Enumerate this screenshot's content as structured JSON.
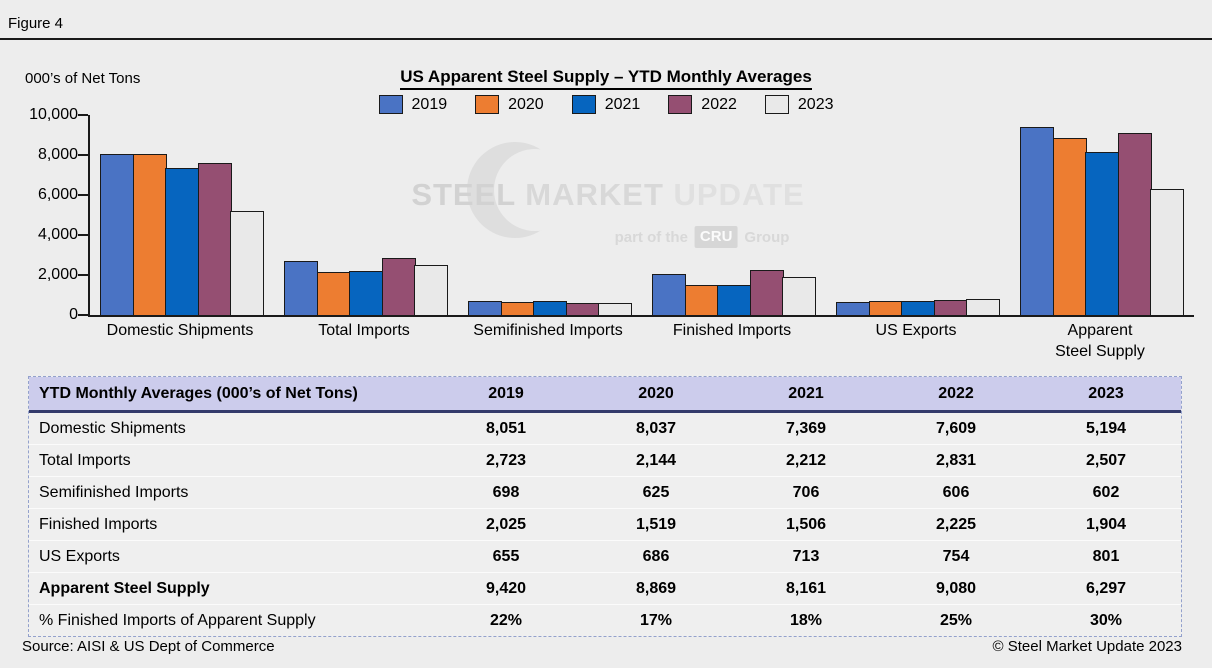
{
  "figure_label": "Figure 4",
  "chart": {
    "ylabel": "000’s of Net Tons",
    "title": "US Apparent Steel Supply – YTD Monthly Averages",
    "watermark": {
      "words": [
        "STEEL",
        "MARKET",
        "UPDATE"
      ],
      "sub_prefix": "part of the",
      "sub_box": "CRU",
      "sub_suffix": "Group"
    }
  },
  "chart_data": {
    "type": "bar",
    "title": "US Apparent Steel Supply – YTD Monthly Averages",
    "ylabel": "000’s of Net Tons",
    "xlabel": "",
    "ylim": [
      0,
      10000
    ],
    "ytick_step": 2000,
    "ytick_labels": [
      "0",
      "2,000",
      "4,000",
      "6,000",
      "8,000",
      "10,000"
    ],
    "grid": false,
    "legend_position": "top",
    "categories": [
      "Domestic Shipments",
      "Total Imports",
      "Semifinished Imports",
      "Finished Imports",
      "US Exports",
      "Apparent\nSteel Supply"
    ],
    "series": [
      {
        "name": "2019",
        "color": "#4A73C4",
        "values": [
          8051,
          2723,
          698,
          2025,
          655,
          9420
        ]
      },
      {
        "name": "2020",
        "color": "#ED7D31",
        "values": [
          8037,
          2144,
          625,
          1519,
          686,
          8869
        ]
      },
      {
        "name": "2021",
        "color": "#0665BF",
        "values": [
          7369,
          2212,
          706,
          1506,
          713,
          8161
        ]
      },
      {
        "name": "2022",
        "color": "#954F72",
        "values": [
          7609,
          2831,
          606,
          2225,
          754,
          9080
        ]
      },
      {
        "name": "2023",
        "color": "#E9E9E9",
        "values": [
          5194,
          2507,
          602,
          1904,
          801,
          6297
        ]
      }
    ]
  },
  "table": {
    "header": {
      "label": "YTD Monthly Averages (000’s of Net Tons)",
      "years": [
        "2019",
        "2020",
        "2021",
        "2022",
        "2023"
      ]
    },
    "rows": [
      {
        "label": "Domestic Shipments",
        "bold_label": false,
        "values": [
          "8,051",
          "8,037",
          "7,369",
          "7,609",
          "5,194"
        ]
      },
      {
        "label": "Total Imports",
        "bold_label": false,
        "values": [
          "2,723",
          "2,144",
          "2,212",
          "2,831",
          "2,507"
        ]
      },
      {
        "label": "Semifinished Imports",
        "bold_label": false,
        "values": [
          "698",
          "625",
          "706",
          "606",
          "602"
        ]
      },
      {
        "label": "Finished Imports",
        "bold_label": false,
        "values": [
          "2,025",
          "1,519",
          "1,506",
          "2,225",
          "1,904"
        ]
      },
      {
        "label": "US Exports",
        "bold_label": false,
        "values": [
          "655",
          "686",
          "713",
          "754",
          "801"
        ]
      },
      {
        "label": "Apparent Steel Supply",
        "bold_label": true,
        "values": [
          "9,420",
          "8,869",
          "8,161",
          "9,080",
          "6,297"
        ]
      },
      {
        "label": "% Finished Imports of Apparent Supply",
        "bold_label": false,
        "values": [
          "22%",
          "17%",
          "18%",
          "25%",
          "30%"
        ]
      }
    ]
  },
  "footer": {
    "source": "Source:  AISI & US Dept of Commerce",
    "copyright": "© Steel Market Update 2023"
  },
  "colors": {
    "page_bg": "#EDEDED",
    "bar_border": "#1A1A1A",
    "table_header_bg": "#CCCCEC",
    "table_header_rule": "#333A6B",
    "table_border": "#93A1CC",
    "watermark_gray": "#D8D8D8"
  }
}
